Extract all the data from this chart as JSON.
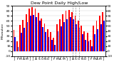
{
  "title": "Dew Point Daily High/Low",
  "ylabel_left": "Milwaukee",
  "ylim": [
    -10,
    90
  ],
  "yticks": [
    -10,
    0,
    10,
    20,
    30,
    40,
    50,
    60,
    70,
    80,
    90
  ],
  "x_labels": [
    "J",
    "F",
    "M",
    "A",
    "M",
    "J",
    "J",
    "A",
    "S",
    "O",
    "N",
    "D",
    "J",
    "F",
    "M",
    "A",
    "M",
    "J",
    "J",
    "A",
    "S",
    "O",
    "N",
    "D",
    "J",
    "F",
    "M",
    "A",
    "M",
    "J"
  ],
  "high_vals": [
    42,
    20,
    52,
    62,
    73,
    85,
    88,
    85,
    76,
    65,
    55,
    44,
    38,
    26,
    53,
    63,
    73,
    80,
    82,
    78,
    70,
    60,
    50,
    40,
    36,
    22,
    50,
    60,
    70,
    78
  ],
  "low_vals": [
    28,
    8,
    37,
    47,
    58,
    70,
    72,
    68,
    60,
    48,
    38,
    28,
    22,
    13,
    39,
    49,
    58,
    64,
    67,
    63,
    53,
    46,
    33,
    23,
    20,
    10,
    34,
    44,
    54,
    60
  ],
  "high_color": "#ff0000",
  "low_color": "#0000ff",
  "background_color": "#ffffff",
  "grid_color": "#cccccc",
  "dashed_lines": [
    19,
    20,
    21
  ],
  "title_fontsize": 4.5,
  "tick_fontsize": 3.2,
  "bar_width": 0.42
}
